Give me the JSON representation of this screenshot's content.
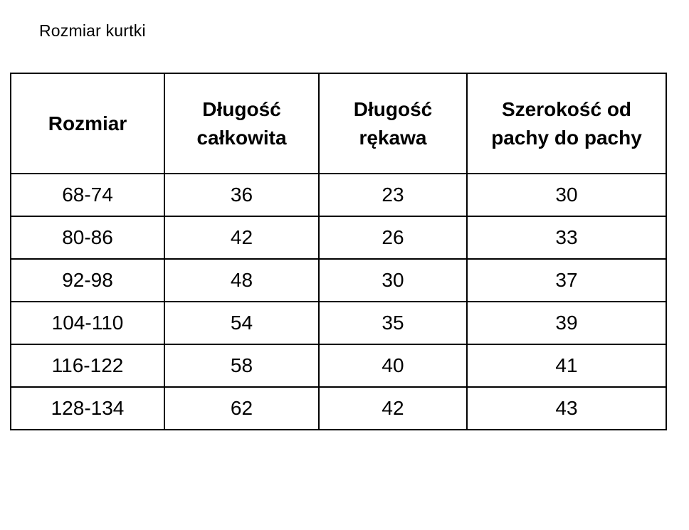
{
  "page_title": "Rozmiar kurtki",
  "colors": {
    "background": "#ffffff",
    "border": "#000000",
    "text": "#000000"
  },
  "table": {
    "columns": [
      "Rozmiar",
      "Długość całkowita",
      "Długość rękawa",
      "Szerokość od pachy do pachy"
    ],
    "rows": [
      [
        "68-74",
        "36",
        "23",
        "30"
      ],
      [
        "80-86",
        "42",
        "26",
        "33"
      ],
      [
        "92-98",
        "48",
        "30",
        "37"
      ],
      [
        "104-110",
        "54",
        "35",
        "39"
      ],
      [
        "116-122",
        "58",
        "40",
        "41"
      ],
      [
        "128-134",
        "62",
        "42",
        "43"
      ]
    ]
  }
}
